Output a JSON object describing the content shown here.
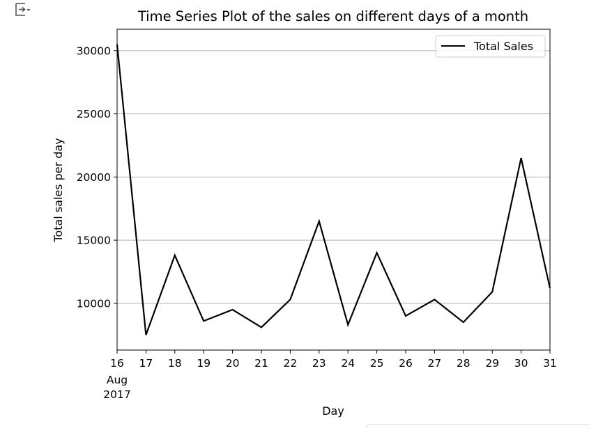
{
  "cell": {
    "output_icon": "output-collapse-icon"
  },
  "chart_data": {
    "type": "line",
    "title": "Time Series Plot of the sales on different days of a month",
    "xlabel": "Day",
    "ylabel": "Total sales per day",
    "x": [
      "2017-08-16",
      "2017-08-17",
      "2017-08-18",
      "2017-08-19",
      "2017-08-20",
      "2017-08-21",
      "2017-08-22",
      "2017-08-23",
      "2017-08-24",
      "2017-08-25",
      "2017-08-26",
      "2017-08-27",
      "2017-08-28",
      "2017-08-29",
      "2017-08-30",
      "2017-08-31"
    ],
    "x_tick_labels": [
      "16",
      "17",
      "18",
      "19",
      "20",
      "21",
      "22",
      "23",
      "24",
      "25",
      "26",
      "27",
      "28",
      "29",
      "30",
      "31"
    ],
    "x_tick_sublabels": [
      "Aug",
      "2017"
    ],
    "series": [
      {
        "name": "Total Sales",
        "color": "#000000",
        "values": [
          30500,
          7500,
          13800,
          8600,
          9500,
          8100,
          10300,
          16500,
          8300,
          14000,
          9000,
          10300,
          8500,
          10900,
          21500,
          11200
        ]
      }
    ],
    "ylim": [
      6300,
      31700
    ],
    "yticks": [
      10000,
      15000,
      20000,
      25000,
      30000
    ],
    "ytick_labels": [
      "10000",
      "15000",
      "20000",
      "25000",
      "30000"
    ],
    "grid": "y-axis only",
    "legend_position": "upper right"
  }
}
